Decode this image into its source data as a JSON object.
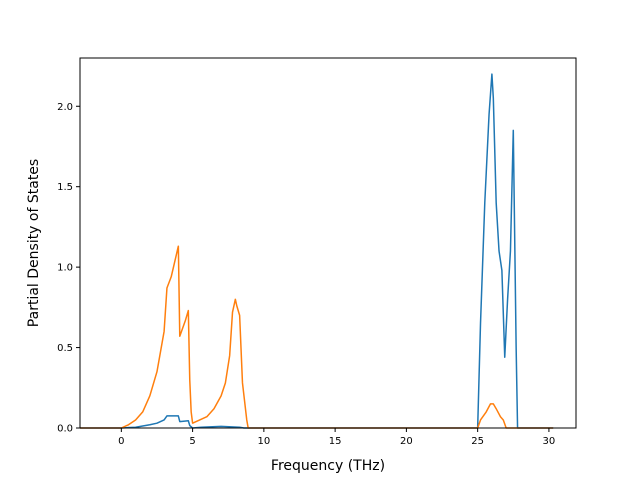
{
  "chart_data": {
    "type": "line",
    "title": "",
    "xlabel": "Frequency (THz)",
    "ylabel": "Partial Density of States",
    "xlim": [
      -2.9,
      31.9
    ],
    "ylim": [
      0.0,
      2.3
    ],
    "xticks": [
      0,
      5,
      10,
      15,
      20,
      25,
      30
    ],
    "xtick_labels": [
      "0",
      "5",
      "10",
      "15",
      "20",
      "25",
      "30"
    ],
    "yticks": [
      0.0,
      0.5,
      1.0,
      1.5,
      2.0
    ],
    "ytick_labels": [
      "0.0",
      "0.5",
      "1.0",
      "1.5",
      "2.0"
    ],
    "grid": false,
    "legend": null,
    "series": [
      {
        "color": "#1f77b4",
        "x": [
          -2.9,
          0.0,
          1.0,
          2.0,
          2.5,
          3.0,
          3.2,
          4.0,
          4.1,
          4.7,
          4.8,
          5.0,
          5.6,
          7.0,
          8.3,
          8.6,
          25.0,
          25.2,
          25.5,
          25.8,
          26.0,
          26.1,
          26.3,
          26.5,
          26.7,
          26.9,
          27.1,
          27.3,
          27.5,
          27.7,
          27.8,
          30.3
        ],
        "y": [
          0.0,
          0.0,
          0.005,
          0.02,
          0.03,
          0.05,
          0.075,
          0.075,
          0.04,
          0.045,
          0.015,
          0.0,
          0.005,
          0.01,
          0.005,
          0.0,
          0.0,
          0.65,
          1.4,
          1.95,
          2.2,
          2.05,
          1.4,
          1.1,
          0.98,
          0.44,
          0.8,
          1.1,
          1.85,
          0.5,
          0.0,
          0.0
        ]
      },
      {
        "color": "#ff7f0e",
        "x": [
          -2.9,
          0.0,
          0.5,
          1.0,
          1.5,
          2.0,
          2.5,
          3.0,
          3.2,
          3.5,
          4.0,
          4.1,
          4.3,
          4.5,
          4.7,
          4.8,
          4.9,
          5.0,
          5.5,
          6.0,
          6.5,
          7.0,
          7.3,
          7.6,
          7.8,
          8.0,
          8.1,
          8.3,
          8.5,
          8.8,
          8.9,
          25.0,
          25.2,
          25.6,
          25.9,
          26.1,
          26.3,
          26.6,
          26.8,
          27.0,
          30.3
        ],
        "y": [
          0.0,
          0.0,
          0.02,
          0.05,
          0.1,
          0.2,
          0.35,
          0.6,
          0.87,
          0.94,
          1.13,
          0.57,
          0.62,
          0.67,
          0.73,
          0.3,
          0.1,
          0.03,
          0.05,
          0.07,
          0.12,
          0.2,
          0.28,
          0.45,
          0.72,
          0.8,
          0.76,
          0.7,
          0.28,
          0.05,
          0.0,
          0.0,
          0.05,
          0.1,
          0.15,
          0.15,
          0.12,
          0.07,
          0.05,
          0.0,
          0.0
        ]
      }
    ]
  }
}
